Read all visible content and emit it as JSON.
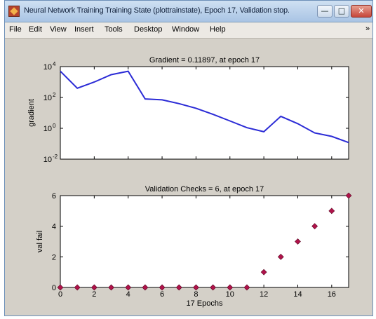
{
  "window": {
    "title": "Neural Network Training Training State (plottrainstate), Epoch 17, Validation stop.",
    "minimize_glyph": "—",
    "maximize_glyph": "□",
    "close_glyph": "✕",
    "icon": "matlab-figure-icon"
  },
  "menu": {
    "items": [
      "File",
      "Edit",
      "View",
      "Insert",
      "Tools",
      "Desktop",
      "Window",
      "Help"
    ],
    "overflow_glyph": "»"
  },
  "colors": {
    "line": "#2b2bd6",
    "marker": "#b0124a",
    "axes_bg": "#ffffff",
    "figure_bg": "#d4d0c8"
  },
  "chart_data": [
    {
      "type": "line",
      "title": "Gradient = 0.11897, at epoch 17",
      "ylabel": "gradient",
      "xlabel": "",
      "yscale": "log",
      "xlim": [
        0,
        17
      ],
      "ylim": [
        0.01,
        10000
      ],
      "yticks": [
        0.01,
        1,
        100,
        10000
      ],
      "ytick_labels": [
        {
          "base": "10",
          "exp": "-2"
        },
        {
          "base": "10",
          "exp": "0"
        },
        {
          "base": "10",
          "exp": "2"
        },
        {
          "base": "10",
          "exp": "4"
        }
      ],
      "xticks": [
        0,
        2,
        4,
        6,
        8,
        10,
        12,
        14,
        16
      ],
      "show_xtick_labels": false,
      "grid": false,
      "series": [
        {
          "x": [
            0,
            1,
            2,
            3,
            4,
            5,
            6,
            7,
            8,
            9,
            10,
            11,
            12,
            13,
            14,
            15,
            16,
            17
          ],
          "values": [
            5000,
            400,
            1000,
            3000,
            5000,
            80,
            70,
            40,
            20,
            8,
            3,
            1.1,
            0.6,
            6,
            2,
            0.5,
            0.3,
            0.12
          ]
        }
      ]
    },
    {
      "type": "scatter",
      "title": "Validation Checks = 6, at epoch 17",
      "ylabel": "val fail",
      "xlabel": "17 Epochs",
      "xlim": [
        0,
        17
      ],
      "ylim": [
        0,
        6
      ],
      "yticks": [
        0,
        2,
        4,
        6
      ],
      "xticks": [
        0,
        2,
        4,
        6,
        8,
        10,
        12,
        14,
        16
      ],
      "grid": false,
      "series": [
        {
          "x": [
            0,
            1,
            2,
            3,
            4,
            5,
            6,
            7,
            8,
            9,
            10,
            11,
            12,
            13,
            14,
            15,
            16,
            17
          ],
          "values": [
            0,
            0,
            0,
            0,
            0,
            0,
            0,
            0,
            0,
            0,
            0,
            0,
            1,
            2,
            3,
            4,
            5,
            6
          ]
        }
      ]
    }
  ]
}
